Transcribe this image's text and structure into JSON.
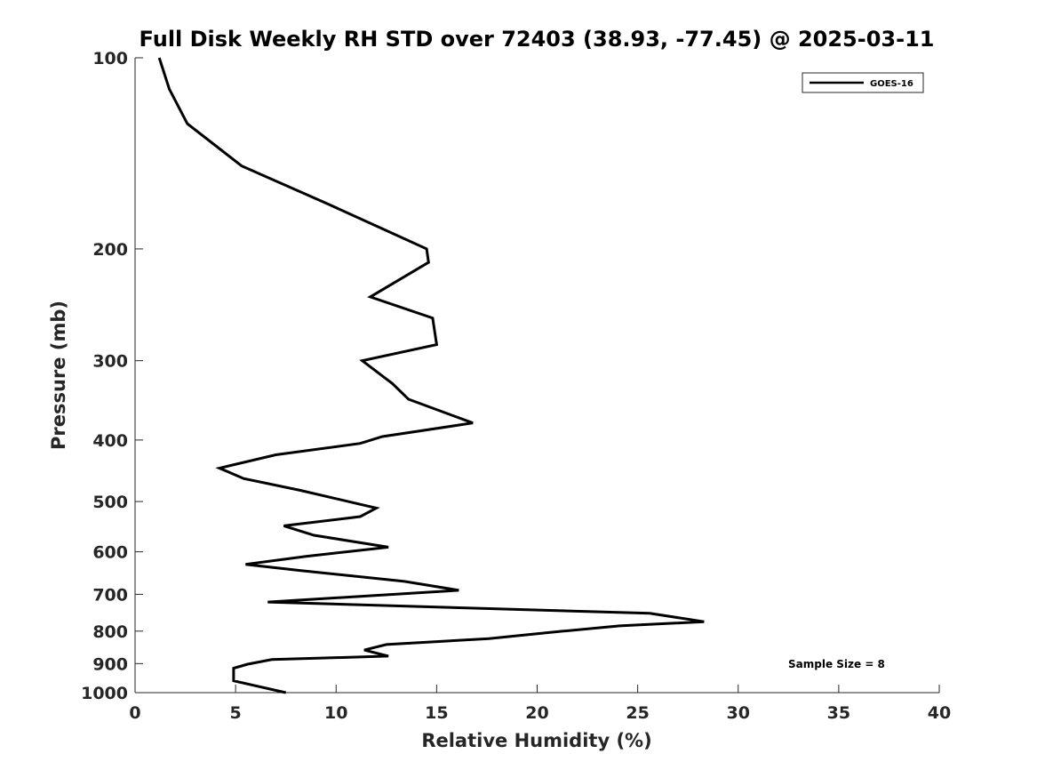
{
  "chart_data": {
    "type": "line",
    "title": "Full Disk Weekly RH STD over 72403 (38.93, -77.45) @ 2025-03-11",
    "xlabel": "Relative Humidity (%)",
    "ylabel": "Pressure (mb)",
    "xlim": [
      0,
      40
    ],
    "ylim": [
      100,
      1000
    ],
    "y_scale": "log",
    "y_direction": "reversed",
    "grid": false,
    "legend_position": "top-right",
    "x_ticks": [
      "0",
      "5",
      "10",
      "15",
      "20",
      "25",
      "30",
      "35",
      "40"
    ],
    "y_ticks": [
      "100",
      "200",
      "300",
      "400",
      "500",
      "600",
      "700",
      "800",
      "900",
      "1000"
    ],
    "annotation": "Sample Size = 8",
    "series": [
      {
        "name": "GOES-16",
        "color": "#000000",
        "x": [
          1.2,
          1.7,
          2.6,
          5.3,
          9.6,
          14.5,
          14.6,
          11.7,
          14.8,
          15.0,
          11.3,
          12.8,
          13.6,
          16.8,
          12.3,
          11.2,
          7.0,
          4.2,
          5.4,
          8.2,
          12.0,
          11.2,
          7.4,
          8.9,
          12.6,
          8.5,
          5.5,
          8.2,
          13.4,
          16.1,
          6.6,
          25.6,
          28.3,
          24.1,
          21.3,
          17.6,
          12.5,
          11.4,
          12.6,
          6.8,
          5.6,
          4.9,
          4.9,
          7.5
        ],
        "y": [
          100,
          112,
          127,
          148,
          170,
          200,
          210,
          238,
          257,
          283,
          300,
          326,
          345,
          376,
          395,
          405,
          422,
          443,
          460,
          480,
          512,
          528,
          546,
          565,
          590,
          610,
          628,
          642,
          668,
          690,
          720,
          750,
          773,
          785,
          800,
          822,
          840,
          857,
          876,
          887,
          902,
          915,
          958,
          1000
        ]
      }
    ]
  }
}
